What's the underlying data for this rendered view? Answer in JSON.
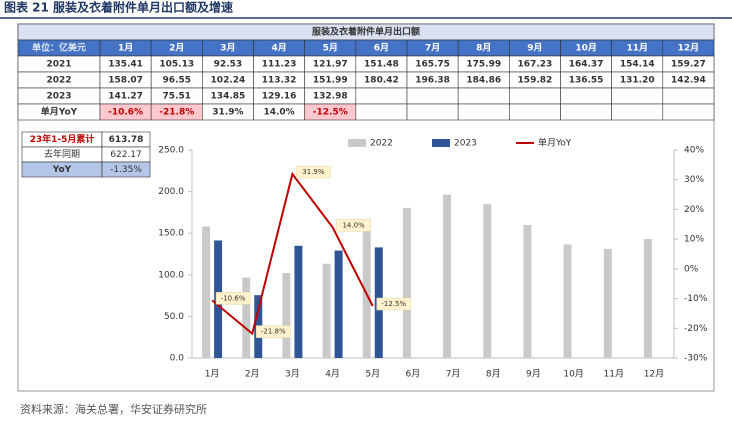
{
  "header": {
    "title": "图表 21 服装及衣着附件单月出口额及增速"
  },
  "table": {
    "title": "服装及衣着附件单月出口额",
    "columns": [
      "单位：亿美元",
      "1月",
      "2月",
      "3月",
      "4月",
      "5月",
      "6月",
      "7月",
      "8月",
      "9月",
      "10月",
      "11月",
      "12月"
    ],
    "rows": [
      {
        "label": "2021",
        "values": [
          "135.41",
          "105.13",
          "92.53",
          "111.23",
          "121.97",
          "151.48",
          "165.75",
          "175.99",
          "167.23",
          "164.37",
          "154.14",
          "159.27"
        ]
      },
      {
        "label": "2022",
        "values": [
          "158.07",
          "96.55",
          "102.24",
          "113.32",
          "151.99",
          "180.42",
          "196.38",
          "184.86",
          "159.82",
          "136.55",
          "131.20",
          "142.94"
        ]
      },
      {
        "label": "2023",
        "values": [
          "141.27",
          "75.51",
          "134.85",
          "129.16",
          "132.98"
        ]
      },
      {
        "label": "单月YoY",
        "values": [
          "-10.6%",
          "-21.8%",
          "31.9%",
          "14.0%",
          "-12.5%"
        ]
      }
    ]
  },
  "summary": {
    "rows": [
      [
        "23年1-5月累计",
        "613.78"
      ],
      [
        "去年同期",
        "622.17"
      ],
      [
        "YoY",
        "-1.35%"
      ]
    ]
  },
  "chart_data": {
    "type": "bar",
    "categories": [
      "1月",
      "2月",
      "3月",
      "4月",
      "5月",
      "6月",
      "7月",
      "8月",
      "9月",
      "10月",
      "11月",
      "12月"
    ],
    "series": [
      {
        "name": "2022",
        "color": "#c9c9c9",
        "values": [
          158.07,
          96.55,
          102.24,
          113.32,
          151.99,
          180.42,
          196.38,
          184.86,
          159.82,
          136.55,
          131.2,
          142.94
        ]
      },
      {
        "name": "2023",
        "color": "#2f5597",
        "values": [
          141.27,
          75.51,
          134.85,
          129.16,
          132.98,
          null,
          null,
          null,
          null,
          null,
          null,
          null
        ]
      },
      {
        "name": "单月YoY",
        "type": "line",
        "axis": "y2",
        "color": "#c00000",
        "values": [
          -10.6,
          -21.8,
          31.9,
          14.0,
          -12.5,
          null,
          null,
          null,
          null,
          null,
          null,
          null
        ],
        "value_labels": [
          "-10.6%",
          "-21.8%",
          "31.9%",
          "14.0%",
          "-12.5%",
          null,
          null,
          null,
          null,
          null,
          null,
          null
        ]
      }
    ],
    "ylim": [
      0,
      250
    ],
    "yticks": [
      {
        "value": 0,
        "label": "0.0"
      },
      {
        "value": 50,
        "label": "50.0"
      },
      {
        "value": 100,
        "label": "100.0"
      },
      {
        "value": 150,
        "label": "150.0"
      },
      {
        "value": 200,
        "label": "200.0"
      },
      {
        "value": 250,
        "label": "250.0"
      }
    ],
    "y2lim": [
      -30,
      40
    ],
    "y2ticks": [
      {
        "value": -30,
        "label": "-30%"
      },
      {
        "value": -20,
        "label": "-20%"
      },
      {
        "value": -10,
        "label": "-10%"
      },
      {
        "value": 0,
        "label": "0%"
      },
      {
        "value": 10,
        "label": "10%"
      },
      {
        "value": 20,
        "label": "20%"
      },
      {
        "value": 30,
        "label": "30%"
      },
      {
        "value": 40,
        "label": "40%"
      }
    ],
    "legend": "top"
  },
  "source": "资料来源：海关总署，华安证券研究所"
}
